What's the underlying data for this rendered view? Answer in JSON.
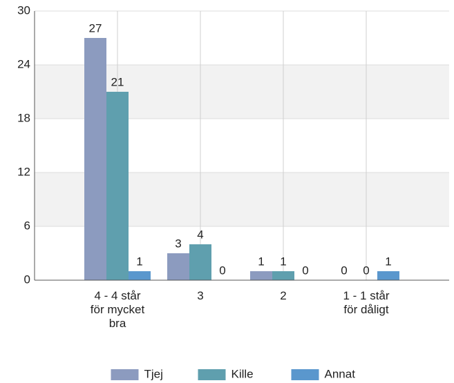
{
  "chart_data": {
    "type": "bar",
    "categories": [
      "4 - 4 står\nför mycket\nbra",
      "3",
      "2",
      "1 - 1 står\nför dåligt"
    ],
    "series": [
      {
        "name": "Tjej",
        "color": "#8c9bbf",
        "values": [
          27,
          3,
          1,
          0
        ]
      },
      {
        "name": "Kille",
        "color": "#5f9fae",
        "values": [
          21,
          4,
          1,
          0
        ]
      },
      {
        "name": "Annat",
        "color": "#5a97cd",
        "values": [
          1,
          0,
          0,
          1
        ]
      }
    ],
    "ylim": [
      0,
      30
    ],
    "yticks": [
      0,
      6,
      12,
      18,
      24,
      30
    ],
    "grid": true,
    "legend": "bottom"
  }
}
